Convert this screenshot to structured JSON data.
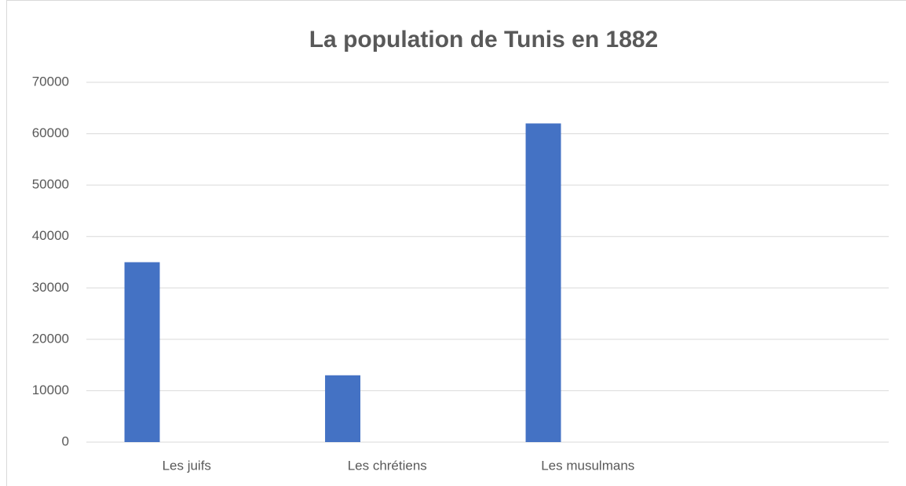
{
  "chart_data": {
    "type": "bar",
    "title": "La population de Tunis en 1882",
    "categories": [
      "Les juifs",
      "Les chrétiens",
      "Les musulmans",
      null
    ],
    "values": [
      35000,
      13000,
      62000,
      null
    ],
    "color": "#4472c4",
    "ylim": [
      0,
      70000
    ],
    "yticks": [
      0,
      10000,
      20000,
      30000,
      40000,
      50000,
      60000,
      70000
    ],
    "grid": true
  }
}
